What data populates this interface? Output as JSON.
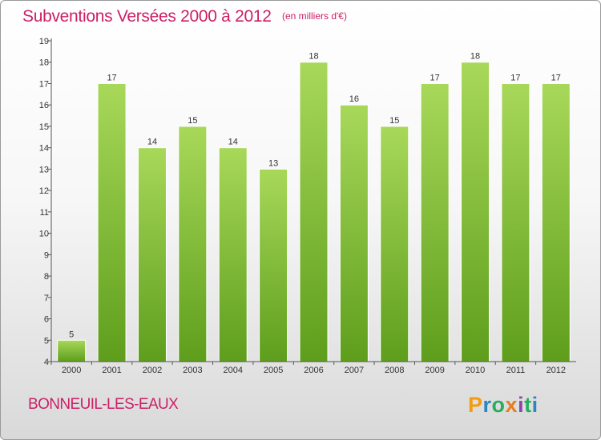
{
  "header": {
    "title": "Subventions Versées 2000 à 2012",
    "subtitle": "(en milliers d'€)"
  },
  "footer": {
    "commune": "BONNEUIL-LES-EAUX",
    "logo_letters": [
      "P",
      "r",
      "o",
      "x",
      "i",
      "t",
      "i"
    ]
  },
  "colors": {
    "title": "#cc1f66",
    "bar_top": "#a8d85a",
    "bar_bottom": "#5e9e1c",
    "axis": "#555555",
    "logo": [
      "#f39c12",
      "#2e86c1",
      "#27ae60",
      "#e67e22",
      "#8e44ad",
      "#27ae60",
      "#2e86c1"
    ]
  },
  "chart_data": {
    "type": "bar",
    "categories": [
      "2000",
      "2001",
      "2002",
      "2003",
      "2004",
      "2005",
      "2006",
      "2007",
      "2008",
      "2009",
      "2010",
      "2011",
      "2012"
    ],
    "values": [
      5,
      17,
      14,
      15,
      14,
      13,
      18,
      16,
      15,
      17,
      18,
      17,
      17
    ],
    "title": "Subventions Versées 2000 à 2012",
    "subtitle": "(en milliers d'€)",
    "xlabel": "",
    "ylabel": "",
    "ylim": [
      4,
      19
    ],
    "yticks": [
      4,
      5,
      6,
      7,
      8,
      9,
      10,
      11,
      12,
      13,
      14,
      15,
      16,
      17,
      18,
      19
    ],
    "grid": false,
    "data_labels": true
  }
}
